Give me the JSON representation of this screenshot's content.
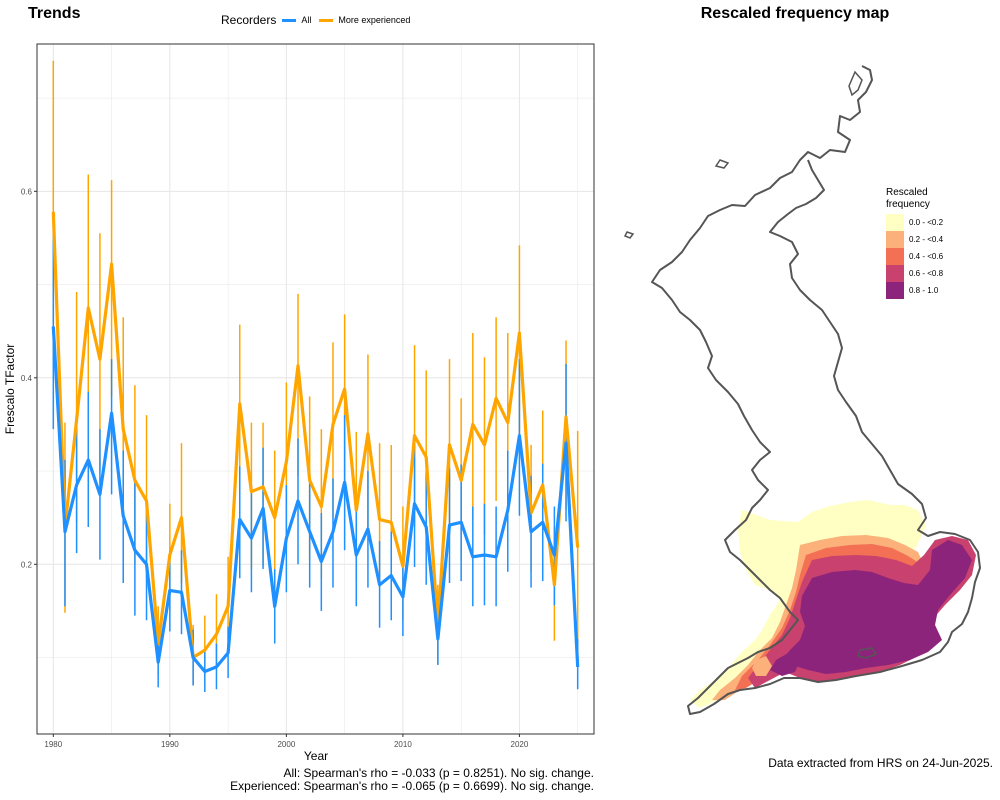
{
  "chart_data": [
    {
      "type": "line",
      "title": "Trends",
      "xlabel": "Year",
      "ylabel": "Frescalo TFactor",
      "xlim": [
        1978.6,
        2026.4
      ],
      "ylim": [
        0.018,
        0.758
      ],
      "xticks": [
        1980,
        1990,
        2000,
        2010,
        2020
      ],
      "yticks": [
        0.2,
        0.4,
        0.6
      ],
      "grid": true,
      "legend": {
        "title": "Recorders",
        "position": "top"
      },
      "x": [
        1980,
        1981,
        1982,
        1983,
        1984,
        1985,
        1986,
        1987,
        1988,
        1989,
        1990,
        1991,
        1992,
        1993,
        1994,
        1995,
        1996,
        1997,
        1998,
        1999,
        2000,
        2001,
        2002,
        2003,
        2004,
        2005,
        2006,
        2007,
        2008,
        2009,
        2010,
        2011,
        2012,
        2013,
        2014,
        2015,
        2016,
        2017,
        2018,
        2019,
        2020,
        2021,
        2022,
        2023,
        2024,
        2025
      ],
      "series": [
        {
          "name": "All",
          "color": "#1e90ff",
          "values": [
            0.455,
            0.235,
            0.285,
            0.312,
            0.275,
            0.362,
            0.252,
            0.215,
            0.2,
            0.095,
            0.172,
            0.17,
            0.1,
            0.085,
            0.09,
            0.105,
            0.248,
            0.228,
            0.26,
            0.155,
            0.228,
            0.268,
            0.235,
            0.203,
            0.235,
            0.288,
            0.21,
            0.238,
            0.178,
            0.188,
            0.165,
            0.265,
            0.24,
            0.12,
            0.242,
            0.245,
            0.208,
            0.21,
            0.208,
            0.258,
            0.338,
            0.235,
            0.245,
            0.21,
            0.33,
            0.09
          ],
          "lower": [
            0.345,
            0.155,
            0.212,
            0.24,
            0.205,
            0.275,
            0.18,
            0.145,
            0.14,
            0.068,
            0.128,
            0.125,
            0.07,
            0.063,
            0.066,
            0.078,
            0.185,
            0.17,
            0.195,
            0.115,
            0.17,
            0.2,
            0.175,
            0.15,
            0.175,
            0.215,
            0.155,
            0.175,
            0.132,
            0.14,
            0.123,
            0.197,
            0.178,
            0.092,
            0.18,
            0.182,
            0.155,
            0.156,
            0.155,
            0.192,
            0.252,
            0.175,
            0.182,
            0.156,
            0.246,
            0.066
          ],
          "upper": [
            0.565,
            0.312,
            0.358,
            0.385,
            0.345,
            0.42,
            0.322,
            0.288,
            0.265,
            0.125,
            0.215,
            0.215,
            0.13,
            0.108,
            0.115,
            0.133,
            0.305,
            0.285,
            0.325,
            0.195,
            0.285,
            0.335,
            0.295,
            0.255,
            0.292,
            0.36,
            0.265,
            0.3,
            0.225,
            0.235,
            0.208,
            0.33,
            0.3,
            0.15,
            0.303,
            0.307,
            0.262,
            0.265,
            0.262,
            0.322,
            0.42,
            0.295,
            0.308,
            0.262,
            0.415,
            0.12
          ]
        },
        {
          "name": "More experienced",
          "color": "#ffa500",
          "values": [
            0.578,
            0.24,
            0.355,
            0.475,
            0.42,
            0.522,
            0.345,
            0.29,
            0.268,
            0.115,
            0.21,
            0.25,
            0.1,
            0.108,
            0.125,
            0.155,
            0.372,
            0.278,
            0.283,
            0.25,
            0.31,
            0.413,
            0.29,
            0.262,
            0.35,
            0.388,
            0.258,
            0.34,
            0.248,
            0.245,
            0.198,
            0.338,
            0.315,
            0.132,
            0.328,
            0.29,
            0.35,
            0.328,
            0.378,
            0.352,
            0.448,
            0.255,
            0.285,
            0.178,
            0.358,
            0.218
          ],
          "lower": [
            0.42,
            0.148,
            0.245,
            0.34,
            0.3,
            0.38,
            0.24,
            0.2,
            0.185,
            0.082,
            0.15,
            0.18,
            0.07,
            0.076,
            0.088,
            0.11,
            0.265,
            0.195,
            0.198,
            0.175,
            0.218,
            0.295,
            0.205,
            0.185,
            0.25,
            0.278,
            0.182,
            0.24,
            0.175,
            0.172,
            0.14,
            0.24,
            0.222,
            0.093,
            0.232,
            0.205,
            0.248,
            0.232,
            0.268,
            0.25,
            0.322,
            0.192,
            0.21,
            0.118,
            0.258,
            0.092
          ],
          "upper": [
            0.74,
            0.352,
            0.492,
            0.618,
            0.555,
            0.612,
            0.465,
            0.392,
            0.36,
            0.155,
            0.265,
            0.33,
            0.135,
            0.145,
            0.168,
            0.208,
            0.457,
            0.352,
            0.352,
            0.322,
            0.395,
            0.49,
            0.38,
            0.345,
            0.438,
            0.468,
            0.342,
            0.425,
            0.33,
            0.328,
            0.262,
            0.435,
            0.408,
            0.178,
            0.42,
            0.378,
            0.448,
            0.422,
            0.465,
            0.448,
            0.542,
            0.328,
            0.365,
            0.24,
            0.44,
            0.343
          ]
        }
      ]
    },
    {
      "type": "heatmap",
      "title": "Rescaled frequency map",
      "legend": {
        "title": [
          "Rescaled",
          "frequency"
        ],
        "position": "right",
        "classes": [
          {
            "label": "0.0 - <0.2",
            "color": "#ffffc4"
          },
          {
            "label": "0.2 - <0.4",
            "color": "#fcb07a"
          },
          {
            "label": "0.4 - <0.6",
            "color": "#f37055"
          },
          {
            "label": "0.6 - <0.8",
            "color": "#c9416e"
          },
          {
            "label": "0.8 - 1.0",
            "color": "#8d247c"
          }
        ]
      }
    }
  ],
  "legend_title": "Recorders",
  "footer": [
    "All: Spearman's rho = -0.033 (p = 0.8251). No sig. change.",
    "Experienced: Spearman's rho = -0.065 (p = 0.6699). No sig. change."
  ],
  "source_note": "Data extracted from HRS on 24-Jun-2025.",
  "colors": {
    "outline": "#555555",
    "grid": "#e6e6e6",
    "panel_border": "#333333"
  }
}
